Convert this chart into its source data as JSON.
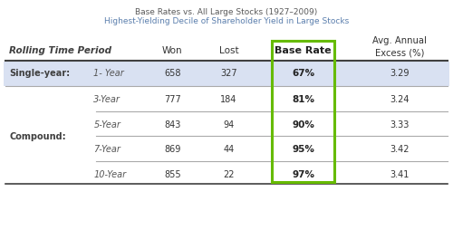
{
  "title1": "Base Rates vs. All Large Stocks (1927–2009)",
  "title2": "Highest-Yielding Decile of Shareholder Yield in Large Stocks",
  "col_headers": [
    "Rolling Time Period",
    "",
    "Won",
    "Lost",
    "Base Rate",
    "Avg. Annual\nExcess (%)"
  ],
  "rows": [
    {
      "group": "Single-year:",
      "period": "1- Year",
      "won": "658",
      "lost": "327",
      "base_rate": "67%",
      "avg_excess": "3.29",
      "shaded": true
    },
    {
      "group": "",
      "period": "3-Year",
      "won": "777",
      "lost": "184",
      "base_rate": "81%",
      "avg_excess": "3.24",
      "shaded": false
    },
    {
      "group": "Compound:",
      "period": "5-Year",
      "won": "843",
      "lost": "94",
      "base_rate": "90%",
      "avg_excess": "3.33",
      "shaded": false
    },
    {
      "group": "",
      "period": "7-Year",
      "won": "869",
      "lost": "44",
      "base_rate": "95%",
      "avg_excess": "3.42",
      "shaded": false
    },
    {
      "group": "",
      "period": "10-Year",
      "won": "855",
      "lost": "22",
      "base_rate": "97%",
      "avg_excess": "3.41",
      "shaded": false
    }
  ],
  "shaded_row_color": "#d9e1f2",
  "bg_color": "#ffffff",
  "border_color": "#cccccc",
  "green_box_color": "#66bb00",
  "title_color1": "#595959",
  "title_color2": "#5b7fad",
  "header_line_color": "#404040",
  "group_label_color": "#404040",
  "period_color": "#555555",
  "base_rate_color": "#222222",
  "data_color": "#333333"
}
